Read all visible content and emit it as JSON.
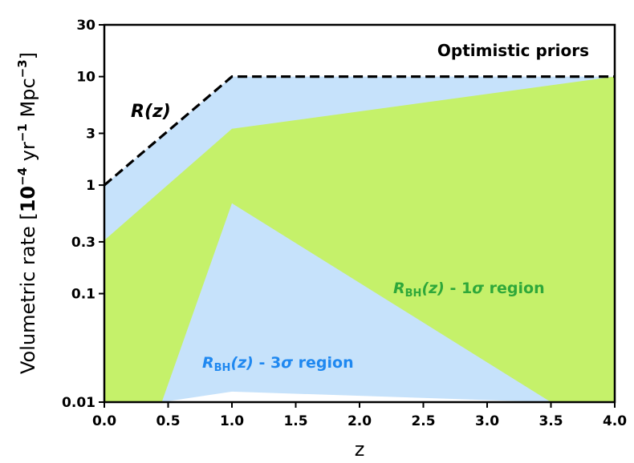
{
  "chart_data": {
    "type": "area",
    "title": "",
    "xlabel": "z",
    "ylabel": {
      "prefix": "Volumetric rate [",
      "base": "10",
      "exp": "−4",
      "unit1": " yr",
      "unit1_exp": "−1",
      "unit2": " Mpc",
      "unit2_exp": "−3",
      "suffix": "]"
    },
    "xlim": [
      0,
      4
    ],
    "ylim": [
      0.01,
      30
    ],
    "yscale": "log",
    "grid": false,
    "x_ticks": [
      0,
      0.5,
      1,
      1.5,
      2,
      2.5,
      3,
      3.5,
      4
    ],
    "x_tick_labels": [
      "0.0",
      "0.5",
      "1.0",
      "1.5",
      "2.0",
      "2.5",
      "3.0",
      "3.5",
      "4.0"
    ],
    "y_ticks": [
      0.01,
      0.1,
      0.3,
      1,
      3,
      10,
      30
    ],
    "y_tick_labels": [
      "0.01",
      "0.1",
      "0.3",
      "1",
      "3",
      "10",
      "30"
    ],
    "annotations": {
      "corner": "Optimistic priors",
      "r_label": "R(z)",
      "sigma1_label": {
        "sym": "R",
        "sub": "BH",
        "arg": "(z)",
        "rest": " - 1",
        "greek": "σ",
        "tail": " region"
      },
      "sigma3_label": {
        "sym": "R",
        "sub": "BH",
        "arg": "(z)",
        "rest": " - 3",
        "greek": "σ",
        "tail": " region"
      }
    },
    "series": [
      {
        "name": "R(z)",
        "style": "dashed-line",
        "color": "#000000",
        "x": [
          0,
          1,
          4
        ],
        "y": [
          1,
          10,
          10
        ]
      },
      {
        "name": "R_BH(z) - 3σ region",
        "style": "fill",
        "color": "#c6e2fb",
        "upper": {
          "x": [
            0,
            1,
            4
          ],
          "y": [
            1.0,
            10.0,
            10.0
          ]
        },
        "lower": {
          "x": [
            0,
            0.45,
            1,
            3.5,
            4
          ],
          "y": [
            0.01,
            0.01,
            0.0125,
            0.01,
            0.01
          ]
        }
      },
      {
        "name": "R_BH(z) - 1σ region",
        "style": "fill",
        "color": "#c5f16a",
        "upper": {
          "x": [
            0,
            1,
            4
          ],
          "y": [
            0.31,
            3.3,
            10.0
          ]
        },
        "lower": {
          "x": [
            0,
            0.45,
            1,
            3.5,
            4
          ],
          "y": [
            0.01,
            0.01,
            0.68,
            0.01,
            0.01
          ]
        }
      }
    ],
    "colors": {
      "sigma1_text": "#2fa83a",
      "sigma3_text": "#1f88f0",
      "sigma1_fill": "#c5f16a",
      "sigma3_fill": "#c6e2fb"
    }
  }
}
